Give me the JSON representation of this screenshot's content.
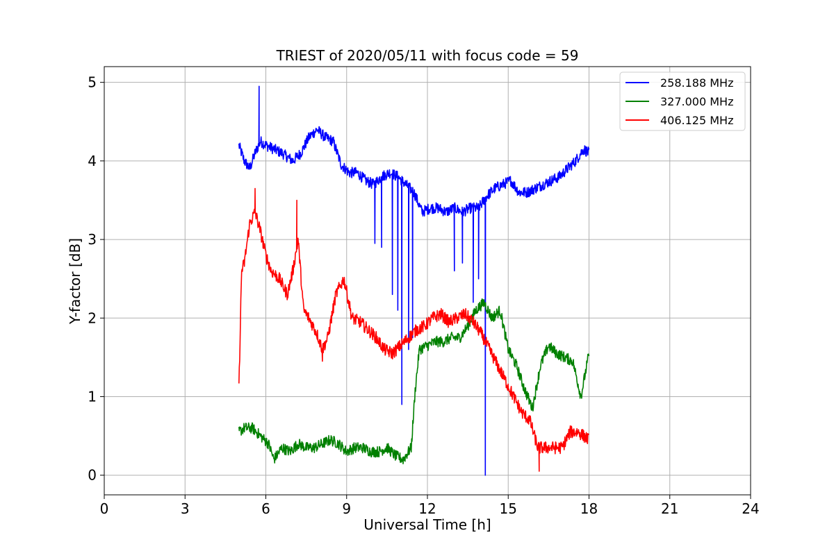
{
  "chart_data": {
    "type": "line",
    "title": "TRIEST of 2020/05/11 with focus code = 59",
    "xlabel": "Universal Time [h]",
    "ylabel": "Y-factor [dB]",
    "xlim": [
      0,
      24
    ],
    "ylim": [
      -0.25,
      5.2
    ],
    "xticks": [
      0,
      3,
      6,
      9,
      12,
      15,
      18,
      21,
      24
    ],
    "yticks": [
      0,
      1,
      2,
      3,
      4,
      5
    ],
    "grid": true,
    "legend_position": "top-right",
    "series": [
      {
        "name": "258.188 MHz",
        "color": "#0000ff",
        "x": [
          5.0,
          5.2,
          5.4,
          5.6,
          5.8,
          6.0,
          6.3,
          6.6,
          7.0,
          7.3,
          7.6,
          7.9,
          8.2,
          8.5,
          8.8,
          9.1,
          9.4,
          9.7,
          10.0,
          10.3,
          10.6,
          10.9,
          11.2,
          11.5,
          11.8,
          12.1,
          12.4,
          12.7,
          13.0,
          13.3,
          13.6,
          13.9,
          14.2,
          14.5,
          14.8,
          15.1,
          15.4,
          15.7,
          16.0,
          16.3,
          16.6,
          16.9,
          17.2,
          17.5,
          17.8,
          18.0
        ],
        "values": [
          4.2,
          4.0,
          3.9,
          4.1,
          4.25,
          4.2,
          4.15,
          4.1,
          4.0,
          4.1,
          4.3,
          4.4,
          4.3,
          4.25,
          3.95,
          3.85,
          3.85,
          3.75,
          3.7,
          3.8,
          3.85,
          3.8,
          3.7,
          3.6,
          3.35,
          3.4,
          3.4,
          3.35,
          3.4,
          3.35,
          3.4,
          3.4,
          3.55,
          3.65,
          3.7,
          3.75,
          3.6,
          3.6,
          3.65,
          3.7,
          3.75,
          3.8,
          3.9,
          4.0,
          4.15,
          4.1
        ],
        "dips": [
          [
            5.75,
            4.95
          ],
          [
            10.05,
            2.95
          ],
          [
            10.3,
            2.9
          ],
          [
            10.7,
            2.3
          ],
          [
            10.9,
            2.1
          ],
          [
            11.05,
            0.9
          ],
          [
            11.3,
            1.6
          ],
          [
            11.45,
            1.75
          ],
          [
            13.0,
            2.6
          ],
          [
            13.3,
            2.7
          ],
          [
            13.7,
            2.2
          ],
          [
            13.9,
            2.5
          ],
          [
            14.15,
            0.0
          ]
        ],
        "noise": 0.07
      },
      {
        "name": "327.000 MHz",
        "color": "#008000",
        "x": [
          5.0,
          5.2,
          5.5,
          5.8,
          6.1,
          6.3,
          6.6,
          6.9,
          7.2,
          7.5,
          7.8,
          8.1,
          8.4,
          8.7,
          9.0,
          9.3,
          9.6,
          9.9,
          10.2,
          10.5,
          10.8,
          11.1,
          11.4,
          11.55,
          11.7,
          12.0,
          12.3,
          12.6,
          12.9,
          13.2,
          13.5,
          13.8,
          14.1,
          14.4,
          14.7,
          15.0,
          15.3,
          15.6,
          15.9,
          16.2,
          16.5,
          16.8,
          17.1,
          17.4,
          17.7,
          18.0
        ],
        "values": [
          0.55,
          0.6,
          0.6,
          0.5,
          0.4,
          0.2,
          0.35,
          0.3,
          0.4,
          0.35,
          0.35,
          0.4,
          0.45,
          0.4,
          0.3,
          0.35,
          0.35,
          0.3,
          0.3,
          0.35,
          0.25,
          0.2,
          0.35,
          1.1,
          1.6,
          1.65,
          1.7,
          1.7,
          1.75,
          1.75,
          1.9,
          2.1,
          2.2,
          2.0,
          2.1,
          1.6,
          1.4,
          1.1,
          0.85,
          1.4,
          1.65,
          1.55,
          1.5,
          1.45,
          1.0,
          1.55
        ],
        "dips": [],
        "noise": 0.07
      },
      {
        "name": "406.125 MHz",
        "color": "#ff0000",
        "x": [
          5.0,
          5.1,
          5.2,
          5.4,
          5.6,
          5.8,
          6.0,
          6.2,
          6.5,
          6.8,
          7.0,
          7.2,
          7.4,
          7.6,
          7.9,
          8.1,
          8.3,
          8.6,
          8.9,
          9.2,
          9.5,
          9.8,
          10.1,
          10.4,
          10.7,
          11.0,
          11.3,
          11.6,
          11.9,
          12.2,
          12.5,
          12.8,
          13.1,
          13.4,
          13.7,
          14.0,
          14.3,
          14.6,
          14.9,
          15.2,
          15.5,
          15.8,
          16.1,
          16.4,
          16.7,
          17.0,
          17.3,
          17.6,
          18.0
        ],
        "values": [
          1.1,
          2.6,
          2.7,
          3.2,
          3.35,
          3.1,
          2.8,
          2.6,
          2.5,
          2.3,
          2.6,
          3.0,
          2.1,
          2.0,
          1.8,
          1.6,
          1.75,
          2.3,
          2.5,
          2.0,
          1.95,
          1.85,
          1.75,
          1.6,
          1.55,
          1.65,
          1.75,
          1.85,
          1.9,
          2.0,
          2.05,
          1.95,
          2.0,
          2.05,
          1.95,
          1.8,
          1.6,
          1.4,
          1.2,
          1.0,
          0.8,
          0.7,
          0.35,
          0.35,
          0.35,
          0.35,
          0.55,
          0.55,
          0.45
        ],
        "dips": [
          [
            5.6,
            3.65
          ],
          [
            7.15,
            3.5
          ],
          [
            8.1,
            1.45
          ],
          [
            16.15,
            0.05
          ]
        ],
        "noise": 0.08
      }
    ]
  }
}
